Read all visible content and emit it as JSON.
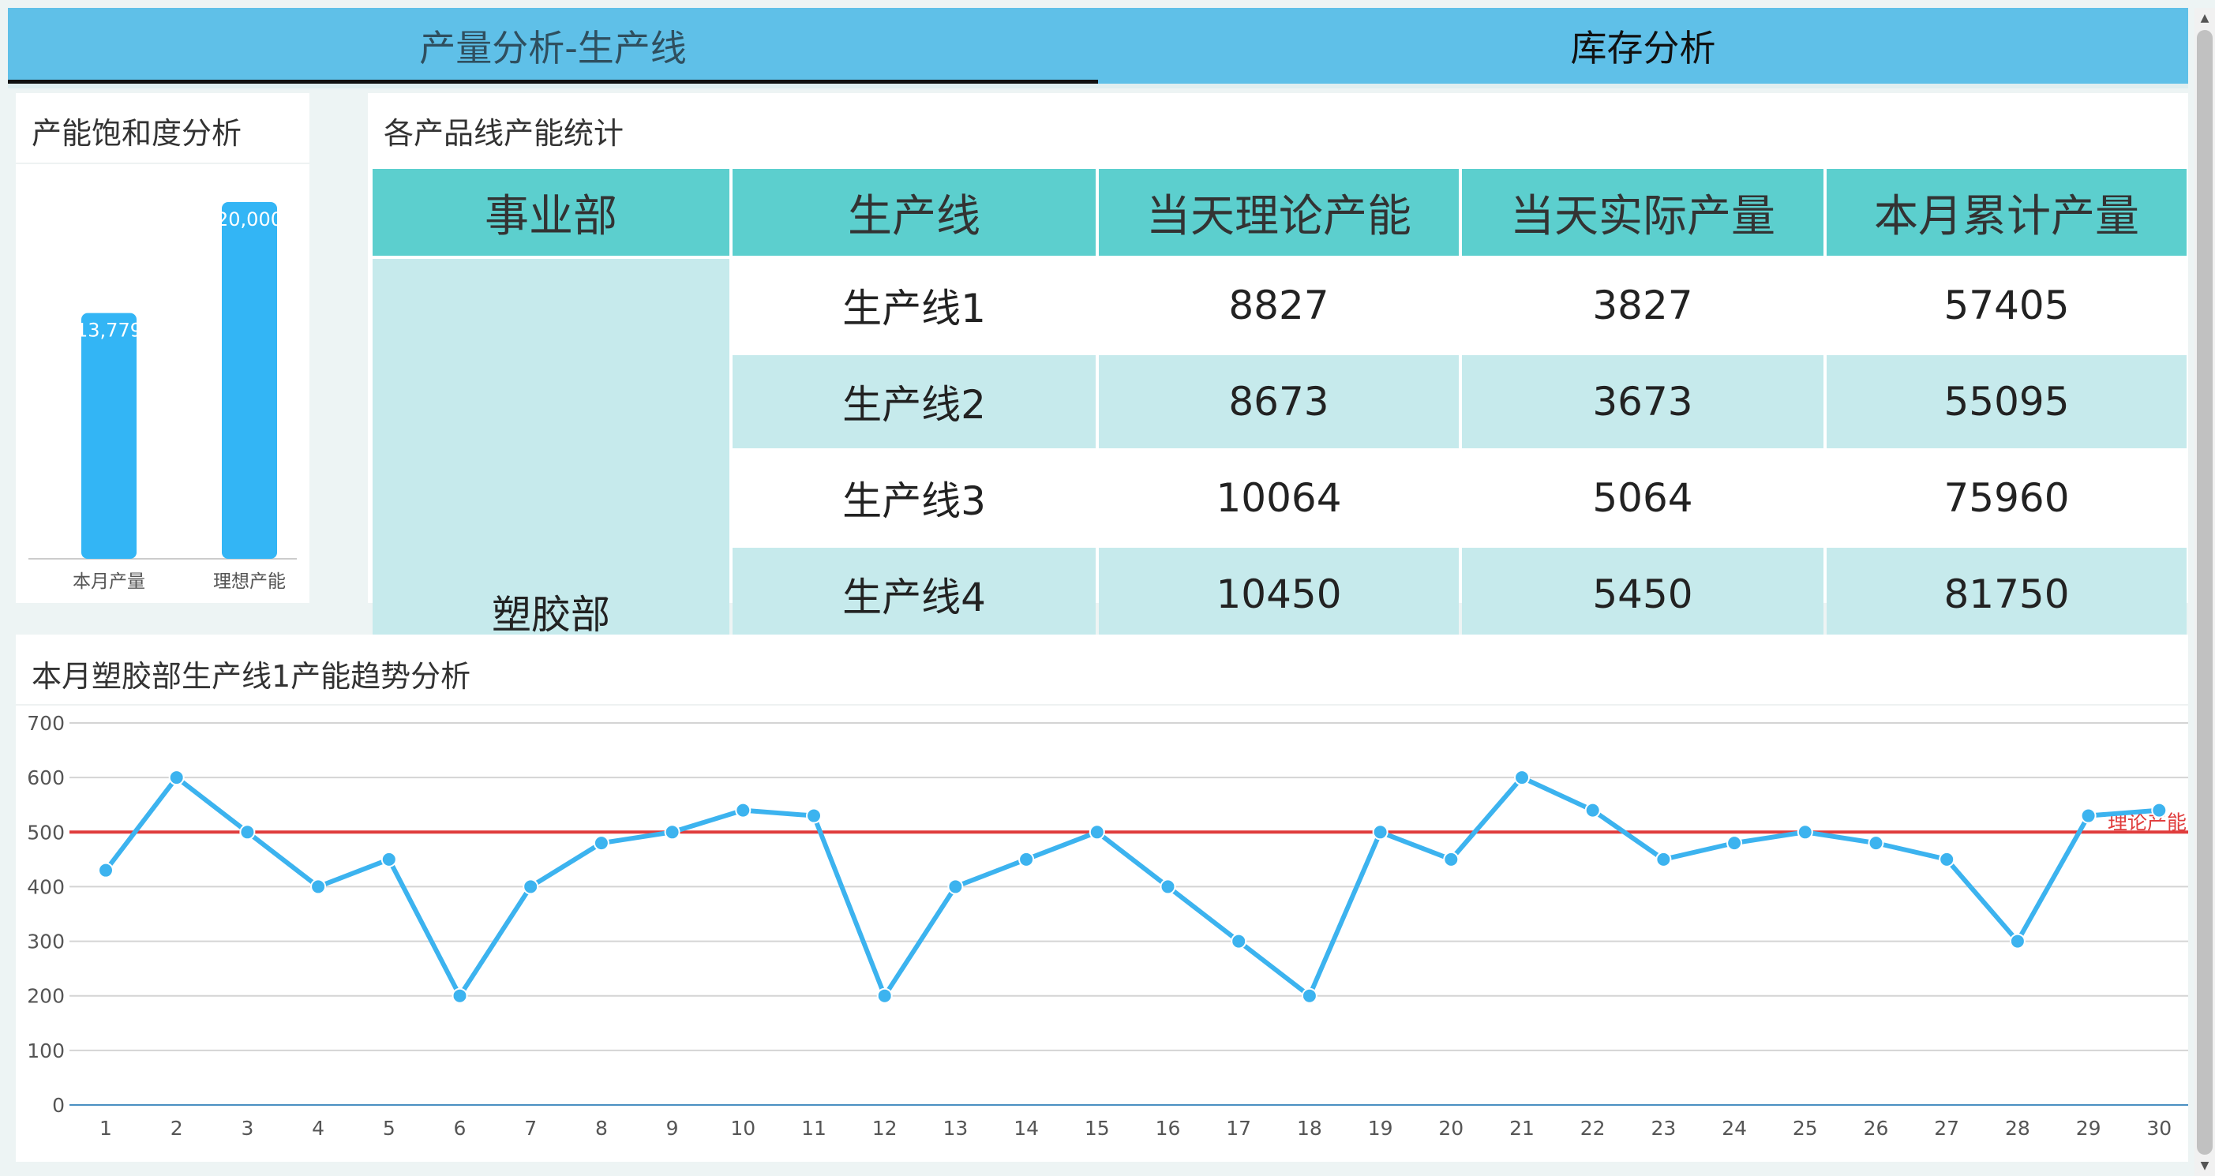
{
  "tabs": [
    {
      "label": "产量分析-生产线"
    },
    {
      "label": "库存分析"
    }
  ],
  "saturation": {
    "title": "产能饱和度分析",
    "chart_data": {
      "type": "bar",
      "categories": [
        "本月产量",
        "理想产能"
      ],
      "values": [
        13779,
        20000
      ],
      "data_labels": [
        "13,779",
        "20,000"
      ],
      "ylim": [
        0,
        20000
      ],
      "color": "#33b5f5"
    }
  },
  "stats": {
    "title": "各产品线产能统计",
    "headers": [
      "事业部",
      "生产线",
      "当天理论产能",
      "当天实际产量",
      "本月累计产量"
    ],
    "department": "塑胶部",
    "rows": [
      {
        "line": "生产线1",
        "theory": "8827",
        "actual": "3827",
        "month": "57405"
      },
      {
        "line": "生产线2",
        "theory": "8673",
        "actual": "3673",
        "month": "55095"
      },
      {
        "line": "生产线3",
        "theory": "10064",
        "actual": "5064",
        "month": "75960"
      },
      {
        "line": "生产线4",
        "theory": "10450",
        "actual": "5450",
        "month": "81750"
      }
    ]
  },
  "trend": {
    "title": "本月塑胶部生产线1产能趋势分析",
    "chart_data": {
      "type": "line",
      "x": [
        1,
        2,
        3,
        4,
        5,
        6,
        7,
        8,
        9,
        10,
        11,
        12,
        13,
        14,
        15,
        16,
        17,
        18,
        19,
        20,
        21,
        22,
        23,
        24,
        25,
        26,
        27,
        28,
        29,
        30
      ],
      "series": [
        {
          "values": [
            430,
            600,
            500,
            400,
            450,
            200,
            400,
            480,
            500,
            540,
            530,
            200,
            400,
            450,
            500,
            400,
            300,
            200,
            500,
            450,
            600,
            540,
            450,
            480,
            500,
            480,
            450,
            300,
            530,
            540
          ],
          "color": "#3cb3ef"
        }
      ],
      "reference_line": {
        "label": "理论产能",
        "value": 500,
        "color": "#e03c3c"
      },
      "ylim": [
        0,
        700
      ],
      "yticks": [
        0,
        100,
        200,
        300,
        400,
        500,
        600,
        700
      ],
      "grid": true
    }
  }
}
